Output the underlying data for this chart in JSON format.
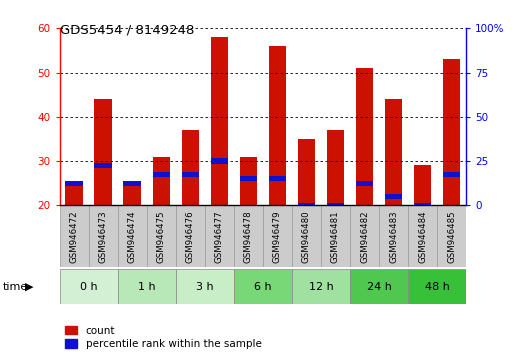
{
  "title": "GDS5454 / 8149248",
  "samples": [
    "GSM946472",
    "GSM946473",
    "GSM946474",
    "GSM946475",
    "GSM946476",
    "GSM946477",
    "GSM946478",
    "GSM946479",
    "GSM946480",
    "GSM946481",
    "GSM946482",
    "GSM946483",
    "GSM946484",
    "GSM946485"
  ],
  "count_values": [
    25,
    44,
    25,
    31,
    37,
    58,
    31,
    56,
    35,
    37,
    51,
    44,
    29,
    53
  ],
  "percentile_values": [
    25,
    29,
    25,
    27,
    27,
    30,
    26,
    26,
    20,
    20,
    25,
    22,
    20,
    27
  ],
  "time_groups": [
    {
      "label": "0 h",
      "start": 0,
      "end": 1,
      "color": "#d4f0d4"
    },
    {
      "label": "1 h",
      "start": 2,
      "end": 3,
      "color": "#b8e8b8"
    },
    {
      "label": "3 h",
      "start": 4,
      "end": 5,
      "color": "#c8eec8"
    },
    {
      "label": "6 h",
      "start": 6,
      "end": 7,
      "color": "#78d878"
    },
    {
      "label": "12 h",
      "start": 8,
      "end": 9,
      "color": "#a0e0a0"
    },
    {
      "label": "24 h",
      "start": 10,
      "end": 11,
      "color": "#50c850"
    },
    {
      "label": "48 h",
      "start": 12,
      "end": 13,
      "color": "#38c038"
    }
  ],
  "bar_color_red": "#cc1100",
  "bar_color_blue": "#1111cc",
  "bar_width": 0.6,
  "ylim_left": [
    20,
    60
  ],
  "ylim_right": [
    0,
    100
  ],
  "yticks_left": [
    20,
    30,
    40,
    50,
    60
  ],
  "yticks_right": [
    0,
    25,
    50,
    75,
    100
  ],
  "legend_count": "count",
  "legend_percentile": "percentile rank within the sample",
  "title_fontsize": 9.5,
  "tick_fontsize": 7.5,
  "sample_fontsize": 6.2
}
